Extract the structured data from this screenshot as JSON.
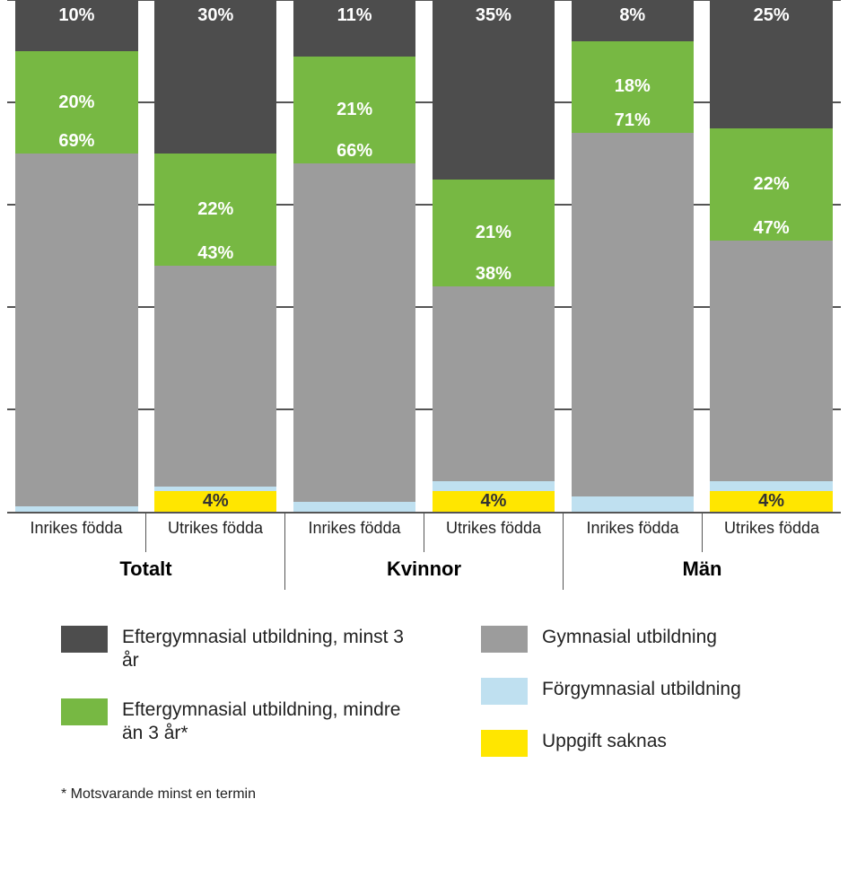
{
  "chart": {
    "type": "stacked-bar",
    "ylim": [
      0,
      100
    ],
    "gridlines": [
      0,
      20,
      40,
      60,
      80,
      100
    ],
    "grid_color": "#555555",
    "background_color": "#ffffff",
    "bar_label_fontsize": 20,
    "bar_label_color_light": "#ffffff",
    "bar_label_color_dark": "#333333",
    "categories_order_top_to_bottom": [
      "efter3",
      "efter_lt3",
      "gymn",
      "forgymn",
      "saknas"
    ],
    "series": {
      "efter3": {
        "label": "Eftergymnasial utbildning, minst 3 år",
        "color": "#4d4d4d"
      },
      "efter_lt3": {
        "label": "Eftergymnasial utbildning, mindre än 3 år*",
        "color": "#77b843"
      },
      "gymn": {
        "label": "Gymnasial utbildning",
        "color": "#9c9c9c"
      },
      "forgymn": {
        "label": "Förgymnasial utbildning",
        "color": "#bfe0f0"
      },
      "saknas": {
        "label": "Uppgift saknas",
        "color": "#ffe600"
      }
    },
    "groups": [
      {
        "label": "Totalt",
        "bars": [
          {
            "sublabel": "Inrikes födda",
            "values": {
              "efter3": 10,
              "efter_lt3": 20,
              "gymn": 69,
              "forgymn": 1,
              "saknas": 0
            },
            "shown": {
              "efter3": "10%",
              "efter_lt3": "20%",
              "gymn": "69%"
            }
          },
          {
            "sublabel": "Utrikes födda",
            "values": {
              "efter3": 30,
              "efter_lt3": 22,
              "gymn": 43,
              "forgymn": 1,
              "saknas": 4
            },
            "shown": {
              "efter3": "30%",
              "efter_lt3": "22%",
              "gymn": "43%",
              "saknas": "4%"
            }
          }
        ]
      },
      {
        "label": "Kvinnor",
        "bars": [
          {
            "sublabel": "Inrikes födda",
            "values": {
              "efter3": 11,
              "efter_lt3": 21,
              "gymn": 66,
              "forgymn": 2,
              "saknas": 0
            },
            "shown": {
              "efter3": "11%",
              "efter_lt3": "21%",
              "gymn": "66%"
            }
          },
          {
            "sublabel": "Utrikes födda",
            "values": {
              "efter3": 35,
              "efter_lt3": 21,
              "gymn": 38,
              "forgymn": 2,
              "saknas": 4
            },
            "shown": {
              "efter3": "35%",
              "efter_lt3": "21%",
              "gymn": "38%",
              "saknas": "4%"
            }
          }
        ]
      },
      {
        "label": "Män",
        "bars": [
          {
            "sublabel": "Inrikes födda",
            "values": {
              "efter3": 8,
              "efter_lt3": 18,
              "gymn": 71,
              "forgymn": 3,
              "saknas": 0
            },
            "shown": {
              "efter3": "8%",
              "efter_lt3": "18%",
              "gymn": "71%"
            }
          },
          {
            "sublabel": "Utrikes födda",
            "values": {
              "efter3": 25,
              "efter_lt3": 22,
              "gymn": 47,
              "forgymn": 2,
              "saknas": 4
            },
            "shown": {
              "efter3": "25%",
              "efter_lt3": "22%",
              "gymn": "47%",
              "saknas": "4%"
            }
          }
        ]
      }
    ],
    "footnote": "* Motsvarande minst en termin",
    "x_sub_fontsize": 18,
    "x_main_fontsize": 22,
    "legend_fontsize": 21,
    "footnote_fontsize": 16
  }
}
